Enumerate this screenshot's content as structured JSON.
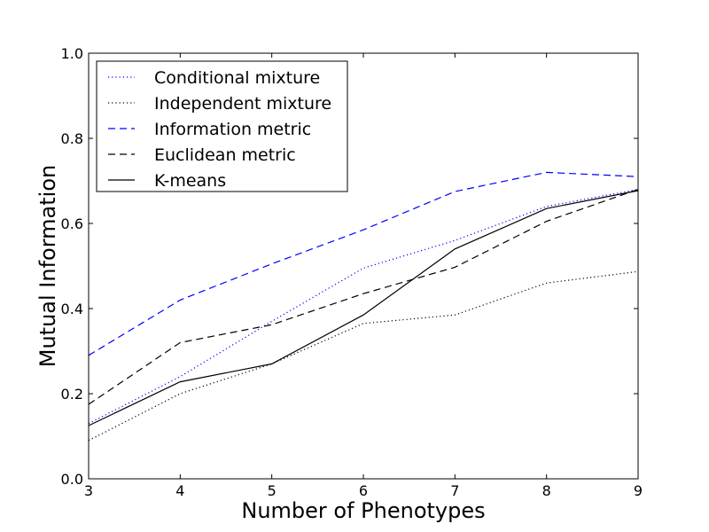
{
  "chart_data": {
    "type": "line",
    "title": "",
    "xlabel": "Number of Phenotypes",
    "ylabel": "Mutual Information",
    "xlim": [
      3,
      9
    ],
    "ylim": [
      0.0,
      1.0
    ],
    "x_ticks": [
      "3",
      "4",
      "5",
      "6",
      "7",
      "8",
      "9"
    ],
    "y_ticks": [
      "0.0",
      "0.2",
      "0.4",
      "0.6",
      "0.8",
      "1.0"
    ],
    "grid": false,
    "legend_position": "top-left",
    "x": [
      3,
      4,
      5,
      6,
      7,
      8,
      9
    ],
    "series": [
      {
        "name": "Conditional mixture",
        "color": "#0000ff",
        "style": "dotted",
        "values": [
          0.13,
          0.24,
          0.37,
          0.495,
          0.56,
          0.64,
          0.68
        ]
      },
      {
        "name": "Independent mixture",
        "color": "#000000",
        "style": "dotted",
        "values": [
          0.09,
          0.2,
          0.27,
          0.365,
          0.385,
          0.46,
          0.487
        ]
      },
      {
        "name": "Information metric",
        "color": "#0000ff",
        "style": "dashed",
        "values": [
          0.29,
          0.42,
          0.505,
          0.585,
          0.675,
          0.72,
          0.71
        ]
      },
      {
        "name": "Euclidean metric",
        "color": "#000000",
        "style": "dashed",
        "values": [
          0.175,
          0.32,
          0.362,
          0.435,
          0.497,
          0.605,
          0.68
        ]
      },
      {
        "name": "K-means",
        "color": "#000000",
        "style": "solid",
        "values": [
          0.125,
          0.228,
          0.27,
          0.385,
          0.54,
          0.635,
          0.677
        ]
      }
    ]
  }
}
